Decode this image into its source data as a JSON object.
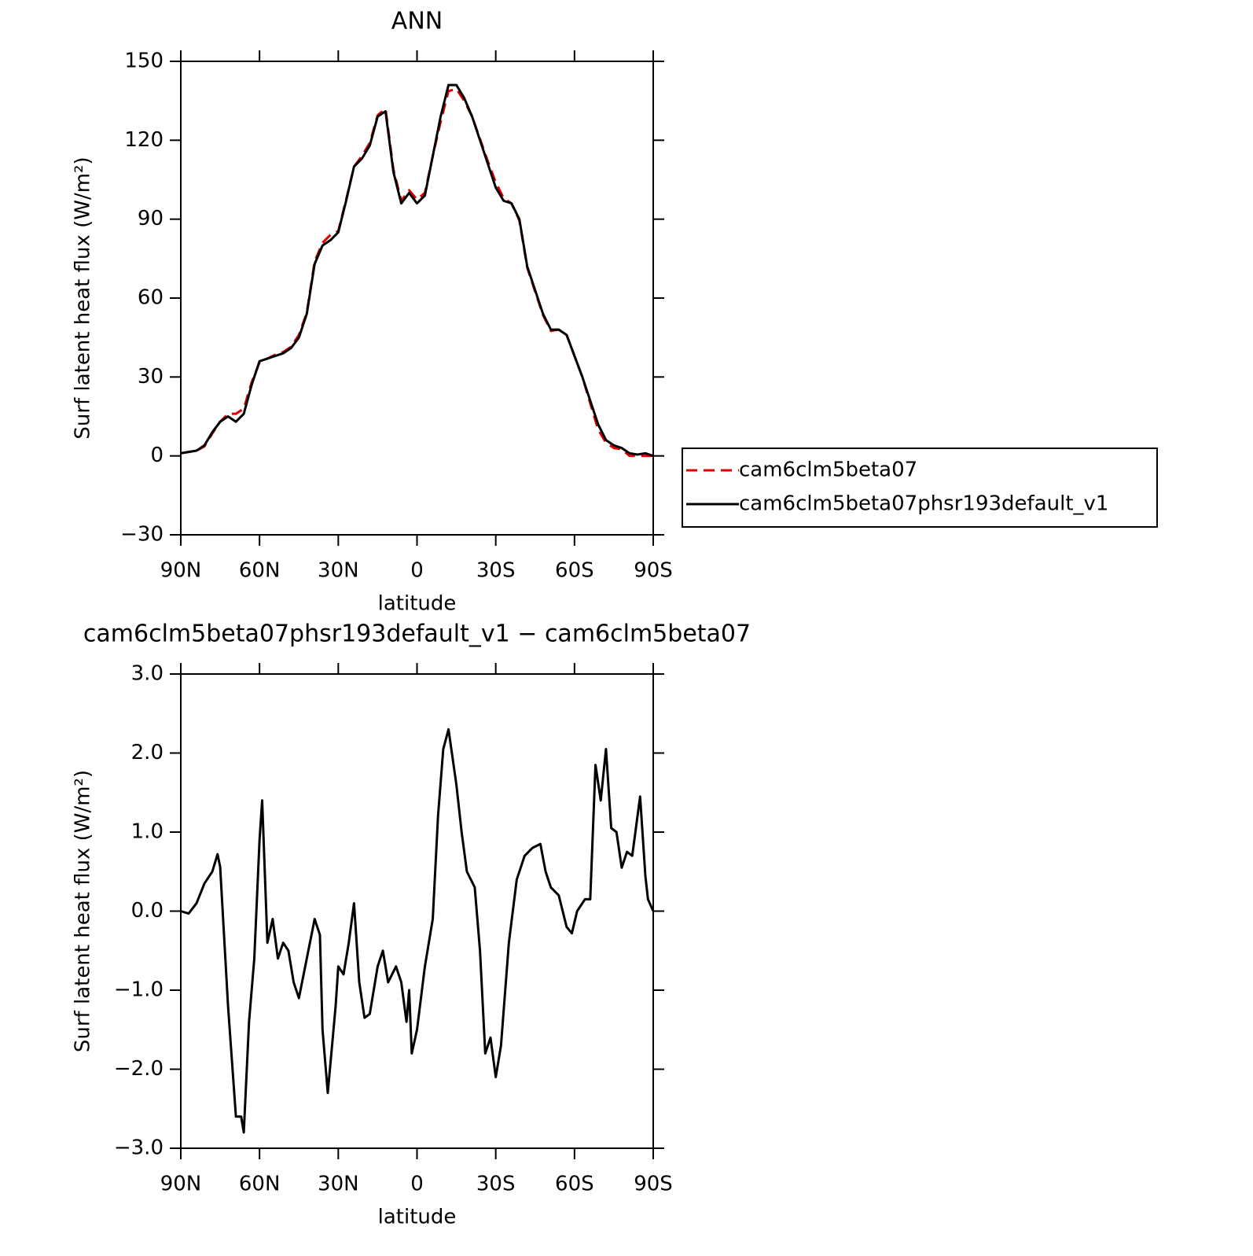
{
  "chart_data": [
    {
      "type": "line",
      "title": "ANN",
      "xlabel": "latitude",
      "ylabel": "Surf latent heat flux (W/m²)",
      "x": [
        90,
        87,
        84,
        81,
        78,
        75,
        72,
        69,
        66,
        63,
        60,
        57,
        54,
        51,
        48,
        45,
        42,
        39,
        36,
        33,
        30,
        27,
        24,
        21,
        18,
        15,
        12,
        9,
        6,
        3,
        0,
        -3,
        -6,
        -9,
        -12,
        -15,
        -18,
        -21,
        -24,
        -27,
        -30,
        -33,
        -36,
        -39,
        -42,
        -45,
        -48,
        -51,
        -54,
        -57,
        -60,
        -63,
        -66,
        -69,
        -72,
        -75,
        -78,
        -81,
        -84,
        -87,
        -90
      ],
      "xlim": [
        90,
        -90
      ],
      "xticks": [
        {
          "value": 90,
          "label": "90N"
        },
        {
          "value": 60,
          "label": "60N"
        },
        {
          "value": 30,
          "label": "30N"
        },
        0,
        {
          "value": -30,
          "label": "30S"
        },
        {
          "value": -60,
          "label": "60S"
        },
        {
          "value": -90,
          "label": "90S"
        }
      ],
      "ylim": [
        -30,
        150
      ],
      "yticks": [
        {
          "value": -30,
          "label": "−30"
        },
        0,
        30,
        60,
        90,
        120,
        150
      ],
      "legend": "right",
      "series": [
        {
          "name": "cam6clm5beta07",
          "color": "#e00000",
          "dash": "dashed",
          "values": [
            1,
            1.5,
            2,
            3.6,
            8.5,
            13,
            16,
            16,
            18,
            28,
            35.5,
            37,
            38.5,
            39.5,
            41.5,
            46,
            54.5,
            74,
            81,
            84,
            85.5,
            97.5,
            110,
            114,
            119,
            129.5,
            132,
            109,
            97,
            101,
            97.5,
            100,
            114,
            127,
            138.7,
            139.5,
            135,
            129,
            120.5,
            112,
            104,
            98,
            96,
            89.5,
            71.5,
            62.5,
            53.5,
            47.5,
            48,
            46,
            38,
            30,
            20,
            10,
            5,
            3,
            2.5,
            0,
            0,
            0,
            0
          ]
        },
        {
          "name": "cam6clm5beta07phsr193default_v1",
          "color": "#000000",
          "dash": "solid",
          "values": [
            1,
            1.5,
            2,
            4,
            9,
            13,
            15,
            13,
            16,
            27,
            36,
            37,
            38,
            39,
            41,
            45,
            54,
            73,
            80,
            82,
            85,
            97,
            110,
            113,
            118,
            129,
            131,
            108,
            96,
            100,
            96,
            99,
            114,
            129,
            141,
            141,
            136,
            129,
            120,
            111,
            102,
            97,
            96,
            90,
            72,
            63,
            54,
            48,
            48,
            46,
            38,
            30,
            21,
            12,
            6,
            4,
            3,
            1,
            0.5,
            1,
            0
          ]
        }
      ]
    },
    {
      "type": "line",
      "title": "cam6clm5beta07phsr193default_v1 − cam6clm5beta07",
      "xlabel": "latitude",
      "ylabel": "Surf latent heat flux (W/m²)",
      "x": [
        90,
        87,
        84,
        81,
        78,
        76,
        75,
        72,
        69,
        67,
        66,
        64,
        62,
        60,
        59,
        57,
        55,
        53,
        51,
        49,
        47,
        45,
        42,
        39,
        37,
        36,
        34,
        31,
        30,
        28,
        26,
        24,
        22,
        20,
        18,
        15,
        13,
        11,
        8,
        6,
        4,
        3,
        2,
        0,
        -3,
        -6,
        -8,
        -10,
        -12,
        -15,
        -17,
        -19,
        -22,
        -24,
        -26,
        -28,
        -30,
        -32,
        -35,
        -38,
        -41,
        -44,
        -47,
        -49,
        -51,
        -54,
        -57,
        -59,
        -61,
        -64,
        -66,
        -68,
        -70,
        -72,
        -74,
        -76,
        -78,
        -80,
        -82,
        -85,
        -87,
        -88,
        -90
      ],
      "xlim": [
        90,
        -90
      ],
      "xticks": [
        {
          "value": 90,
          "label": "90N"
        },
        {
          "value": 60,
          "label": "60N"
        },
        {
          "value": 30,
          "label": "30N"
        },
        0,
        {
          "value": -30,
          "label": "30S"
        },
        {
          "value": -60,
          "label": "60S"
        },
        {
          "value": -90,
          "label": "90S"
        }
      ],
      "ylim": [
        -3,
        3
      ],
      "yticks": [
        {
          "value": -3,
          "label": "−3.0"
        },
        {
          "value": -2,
          "label": "−2.0"
        },
        {
          "value": -1,
          "label": "−1.0"
        },
        {
          "value": 0,
          "label": "0.0"
        },
        {
          "value": 1,
          "label": "1.0"
        },
        {
          "value": 2,
          "label": "2.0"
        },
        {
          "value": 3,
          "label": "3.0"
        }
      ],
      "series": [
        {
          "color": "#000000",
          "dash": "solid",
          "values": [
            0,
            -0.03,
            0.1,
            0.35,
            0.5,
            0.72,
            0.56,
            -1.2,
            -2.6,
            -2.6,
            -2.8,
            -1.4,
            -0.6,
            0.9,
            1.4,
            -0.4,
            -0.1,
            -0.6,
            -0.4,
            -0.5,
            -0.9,
            -1.1,
            -0.6,
            -0.1,
            -0.3,
            -1.5,
            -2.3,
            -1.2,
            -0.7,
            -0.8,
            -0.4,
            0.1,
            -0.9,
            -1.35,
            -1.3,
            -0.7,
            -0.5,
            -0.9,
            -0.7,
            -0.9,
            -1.4,
            -1.0,
            -1.8,
            -1.5,
            -0.7,
            -0.1,
            1.2,
            2.05,
            2.3,
            1.6,
            1.0,
            0.5,
            0.3,
            -0.5,
            -1.8,
            -1.6,
            -2.1,
            -1.7,
            -0.4,
            0.4,
            0.7,
            0.8,
            0.85,
            0.5,
            0.3,
            0.2,
            -0.2,
            -0.28,
            0.0,
            0.15,
            0.15,
            1.85,
            1.4,
            2.05,
            1.05,
            1.0,
            0.55,
            0.75,
            0.7,
            1.45,
            0.45,
            0.15,
            0
          ]
        }
      ]
    }
  ]
}
